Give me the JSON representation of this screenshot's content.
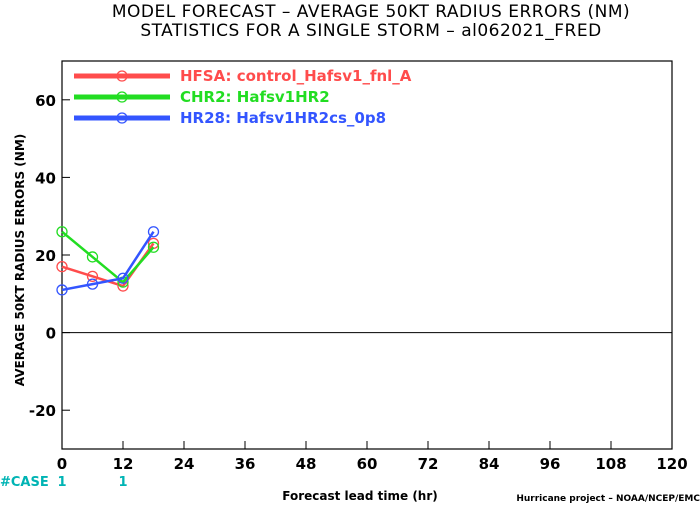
{
  "chart_data": {
    "type": "line",
    "title": [
      "MODEL FORECAST – AVERAGE 50KT RADIUS ERRORS (NM)",
      "STATISTICS FOR A SINGLE STORM – al062021_FRED"
    ],
    "xlabel": "Forecast lead time (hr)",
    "ylabel": "AVERAGE 50KT RADIUS ERRORS (NM)",
    "xlim": [
      0,
      120
    ],
    "ylim": [
      -30,
      70
    ],
    "xticks": [
      "0",
      "12",
      "24",
      "36",
      "48",
      "60",
      "72",
      "84",
      "96",
      "108",
      "120"
    ],
    "yticks": [
      "-20",
      "0",
      "20",
      "40",
      "60"
    ],
    "grid": false,
    "legend_position": "top-left",
    "series": [
      {
        "name": "HFSA: control_Hafsv1_fnl_A",
        "color": "#ff4c4c",
        "x": [
          0,
          6,
          12,
          18
        ],
        "values": [
          17,
          14.5,
          12,
          23
        ]
      },
      {
        "name": "CHR2: Hafsv1HR2",
        "color": "#22dd22",
        "x": [
          0,
          6,
          12,
          18
        ],
        "values": [
          26,
          19.5,
          13,
          22
        ]
      },
      {
        "name": "HR28: Hafsv1HR2cs_0p8",
        "color": "#3355ff",
        "x": [
          0,
          6,
          12,
          18
        ],
        "values": [
          11,
          12.5,
          14,
          26
        ]
      }
    ],
    "case_row": {
      "label": "#CASE",
      "x": [
        0,
        12
      ],
      "values": [
        "1",
        "1"
      ]
    },
    "credit": "Hurricane project – NOAA/NCEP/EMC"
  }
}
